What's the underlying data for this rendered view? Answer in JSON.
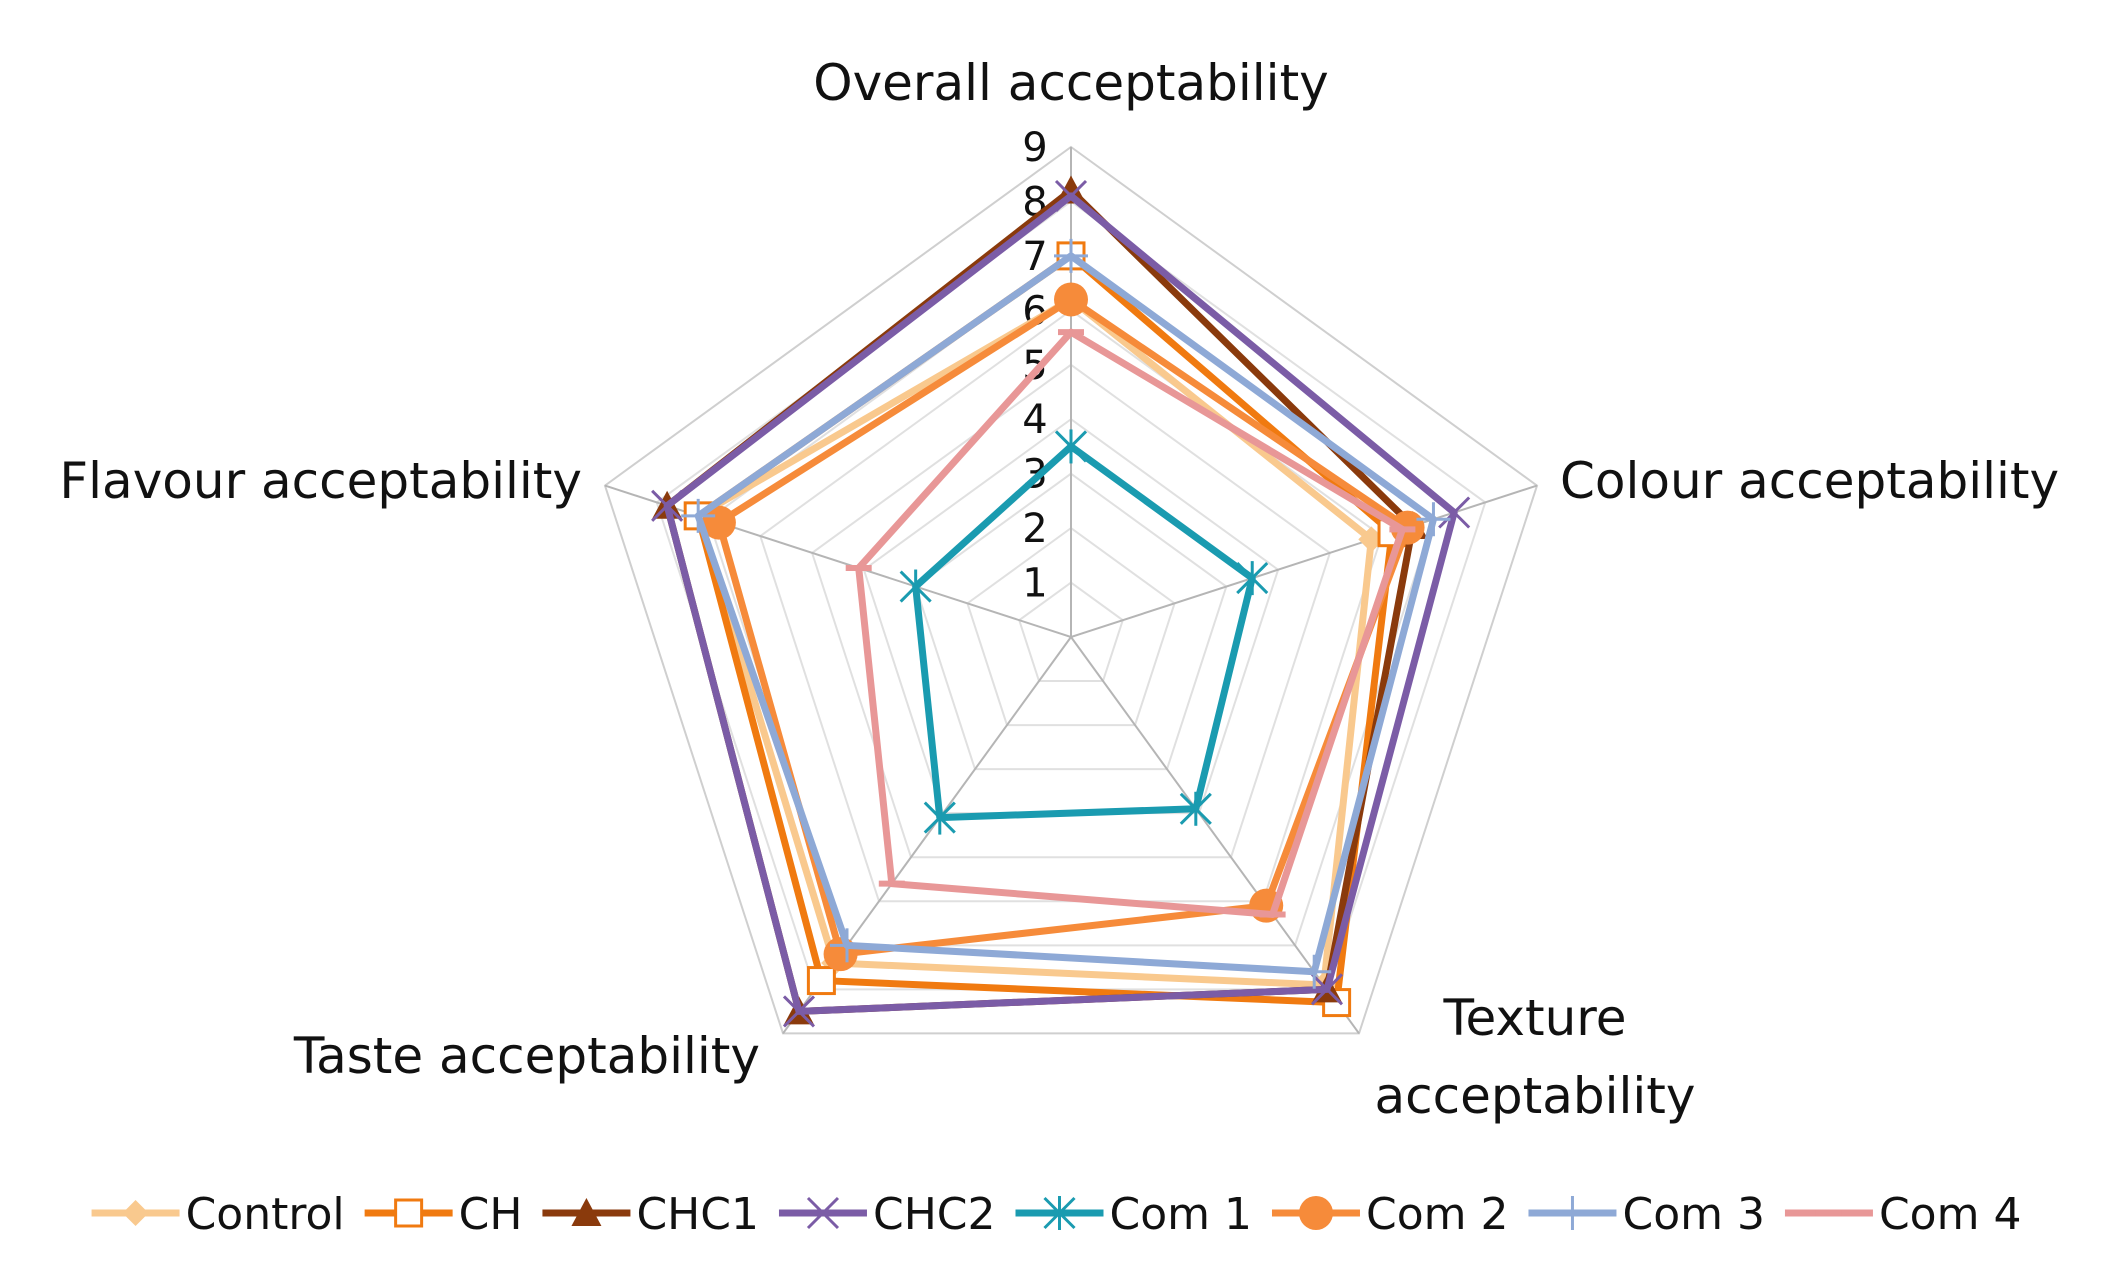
{
  "chart_data": {
    "type": "radar",
    "title": "",
    "axes": [
      "Overall acceptability",
      "Colour acceptability",
      "Texture acceptability",
      "Taste acceptability",
      "Flavour acceptability"
    ],
    "axis_label_lines": [
      [
        "Overall acceptability"
      ],
      [
        "Colour acceptability"
      ],
      [
        "Texture",
        "acceptability"
      ],
      [
        "Taste acceptability"
      ],
      [
        "Flavour acceptability"
      ]
    ],
    "rlim": [
      0,
      9
    ],
    "ticks": [
      1,
      2,
      3,
      4,
      5,
      6,
      7,
      8,
      9
    ],
    "grid": true,
    "legend_position": "bottom",
    "series": [
      {
        "name": "Control",
        "color": "#F9C98E",
        "marker": "diamond",
        "values": [
          6.2,
          5.8,
          7.9,
          7.4,
          7.2
        ]
      },
      {
        "name": "CH",
        "color": "#F07A10",
        "marker": "square-open",
        "values": [
          7.0,
          6.2,
          8.3,
          7.8,
          7.2
        ]
      },
      {
        "name": "CHC1",
        "color": "#8A3A0C",
        "marker": "triangle",
        "values": [
          8.2,
          6.6,
          8.0,
          8.5,
          7.8
        ]
      },
      {
        "name": "CHC2",
        "color": "#7B5CA6",
        "marker": "x",
        "values": [
          8.1,
          7.4,
          8.0,
          8.5,
          7.8
        ]
      },
      {
        "name": "Com 1",
        "color": "#1A9BB0",
        "marker": "asterisk",
        "values": [
          3.5,
          3.5,
          3.9,
          4.1,
          3.0
        ]
      },
      {
        "name": "Com 2",
        "color": "#F68B3A",
        "marker": "circle",
        "values": [
          6.2,
          6.5,
          6.1,
          7.2,
          6.8
        ]
      },
      {
        "name": "Com 3",
        "color": "#8EA9D6",
        "marker": "plus",
        "values": [
          7.0,
          7.0,
          7.6,
          7.0,
          7.2
        ]
      },
      {
        "name": "Com 4",
        "color": "#E89797",
        "marker": "dash",
        "values": [
          5.6,
          6.4,
          6.3,
          5.6,
          4.1
        ]
      }
    ]
  }
}
